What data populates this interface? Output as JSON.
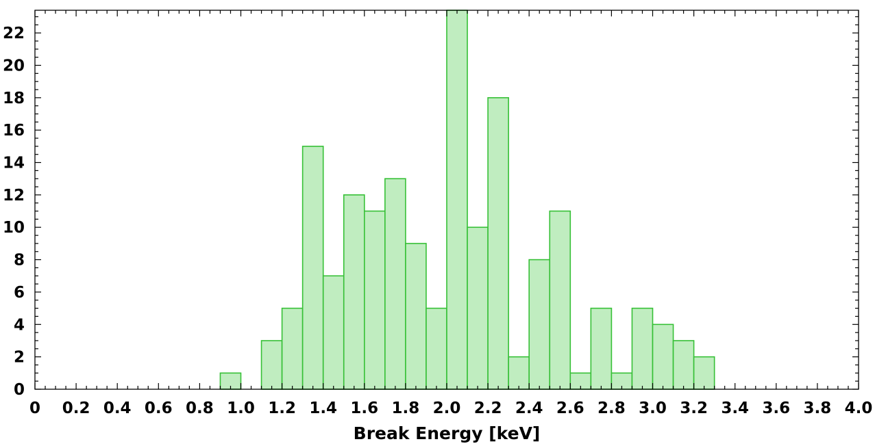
{
  "chart_data": {
    "type": "bar",
    "title": "",
    "xlabel": "Break Energy [keV]",
    "ylabel": "",
    "bin_width": 0.1,
    "bins": [
      {
        "x0": 0.9,
        "x1": 1.0,
        "count": 1
      },
      {
        "x0": 1.1,
        "x1": 1.2,
        "count": 3
      },
      {
        "x0": 1.2,
        "x1": 1.3,
        "count": 5
      },
      {
        "x0": 1.3,
        "x1": 1.4,
        "count": 15
      },
      {
        "x0": 1.4,
        "x1": 1.5,
        "count": 7
      },
      {
        "x0": 1.5,
        "x1": 1.6,
        "count": 12
      },
      {
        "x0": 1.6,
        "x1": 1.7,
        "count": 11
      },
      {
        "x0": 1.7,
        "x1": 1.8,
        "count": 13
      },
      {
        "x0": 1.8,
        "x1": 1.9,
        "count": 9
      },
      {
        "x0": 1.9,
        "x1": 2.0,
        "count": 5
      },
      {
        "x0": 2.0,
        "x1": 2.1,
        "count": 24
      },
      {
        "x0": 2.1,
        "x1": 2.2,
        "count": 10
      },
      {
        "x0": 2.2,
        "x1": 2.3,
        "count": 18
      },
      {
        "x0": 2.3,
        "x1": 2.4,
        "count": 2
      },
      {
        "x0": 2.4,
        "x1": 2.5,
        "count": 8
      },
      {
        "x0": 2.5,
        "x1": 2.6,
        "count": 11
      },
      {
        "x0": 2.6,
        "x1": 2.7,
        "count": 1
      },
      {
        "x0": 2.7,
        "x1": 2.8,
        "count": 5
      },
      {
        "x0": 2.8,
        "x1": 2.9,
        "count": 1
      },
      {
        "x0": 2.9,
        "x1": 3.0,
        "count": 5
      },
      {
        "x0": 3.0,
        "x1": 3.1,
        "count": 4
      },
      {
        "x0": 3.1,
        "x1": 3.2,
        "count": 3
      },
      {
        "x0": 3.2,
        "x1": 3.3,
        "count": 2
      }
    ],
    "xlim": [
      0,
      4.0
    ],
    "ylim": [
      0,
      23.4
    ],
    "x_ticks": [
      "0",
      "0.2",
      "0.4",
      "0.6",
      "0.8",
      "1.0",
      "1.2",
      "1.4",
      "1.6",
      "1.8",
      "2.0",
      "2.2",
      "2.4",
      "2.6",
      "2.8",
      "3.0",
      "3.2",
      "3.4",
      "3.6",
      "3.8",
      "4.0"
    ],
    "x_tick_values": [
      0,
      0.2,
      0.4,
      0.6,
      0.8,
      1.0,
      1.2,
      1.4,
      1.6,
      1.8,
      2.0,
      2.2,
      2.4,
      2.6,
      2.8,
      3.0,
      3.2,
      3.4,
      3.6,
      3.8,
      4.0
    ],
    "y_ticks": [
      "0",
      "2",
      "4",
      "6",
      "8",
      "10",
      "12",
      "14",
      "16",
      "18",
      "20",
      "22"
    ],
    "y_tick_values": [
      0,
      2,
      4,
      6,
      8,
      10,
      12,
      14,
      16,
      18,
      20,
      22
    ],
    "grid": false,
    "colors": {
      "bar_fill": "#c0edc0",
      "bar_edge": "#36c036"
    }
  }
}
